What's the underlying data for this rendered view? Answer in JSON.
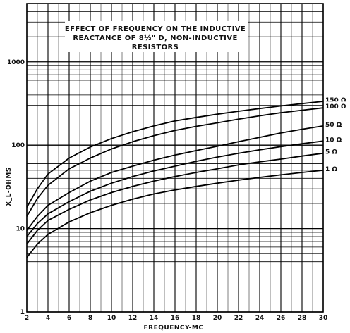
{
  "chart_data": {
    "type": "line",
    "title_lines": [
      "EFFECT OF FREQUENCY ON THE INDUCTIVE",
      "REACTANCE OF 8½\" D, NON-INDUCTIVE",
      "RESISTORS"
    ],
    "xlabel": "FREQUENCY-MC",
    "ylabel": "X_L-OHMS",
    "xlim": [
      2,
      30
    ],
    "ylim": [
      1,
      5000
    ],
    "yscale": "log",
    "grid": true,
    "x_ticks": [
      2,
      4,
      6,
      8,
      10,
      12,
      14,
      16,
      18,
      20,
      22,
      24,
      26,
      28,
      30
    ],
    "y_tick_labels": [
      {
        "value": 1,
        "label": "1"
      },
      {
        "value": 10,
        "label": "10"
      },
      {
        "value": 100,
        "label": "100"
      },
      {
        "value": 1000,
        "label": "1000"
      }
    ],
    "x": [
      2,
      3,
      4,
      6,
      8,
      10,
      12,
      14,
      16,
      18,
      20,
      22,
      24,
      26,
      28,
      30
    ],
    "series": [
      {
        "name": "150 Ω",
        "values": [
          18,
          30,
          45,
          70,
          95,
          120,
          145,
          170,
          195,
          215,
          235,
          255,
          275,
          295,
          315,
          335
        ]
      },
      {
        "name": "100 Ω",
        "values": [
          14,
          23,
          33,
          52,
          70,
          90,
          110,
          130,
          150,
          168,
          185,
          205,
          225,
          245,
          262,
          280
        ]
      },
      {
        "name": "50 Ω",
        "values": [
          9.5,
          14,
          19,
          27,
          37,
          47,
          56,
          66,
          76,
          86,
          97,
          110,
          124,
          140,
          155,
          170
        ]
      },
      {
        "name": "10 Ω",
        "values": [
          8,
          11.5,
          15,
          21,
          28,
          35,
          42,
          49,
          56,
          64,
          72,
          80,
          88,
          96,
          104,
          112
        ]
      },
      {
        "name": "5 Ω",
        "values": [
          6.5,
          9.5,
          12.5,
          17,
          22,
          27,
          32,
          37,
          42,
          47,
          52,
          58,
          63,
          68,
          74,
          80
        ]
      },
      {
        "name": "1 Ω",
        "values": [
          4.5,
          6.5,
          8.5,
          12,
          15.5,
          19,
          22.5,
          26,
          29,
          32,
          35,
          38,
          41,
          44,
          47,
          50
        ]
      }
    ]
  }
}
